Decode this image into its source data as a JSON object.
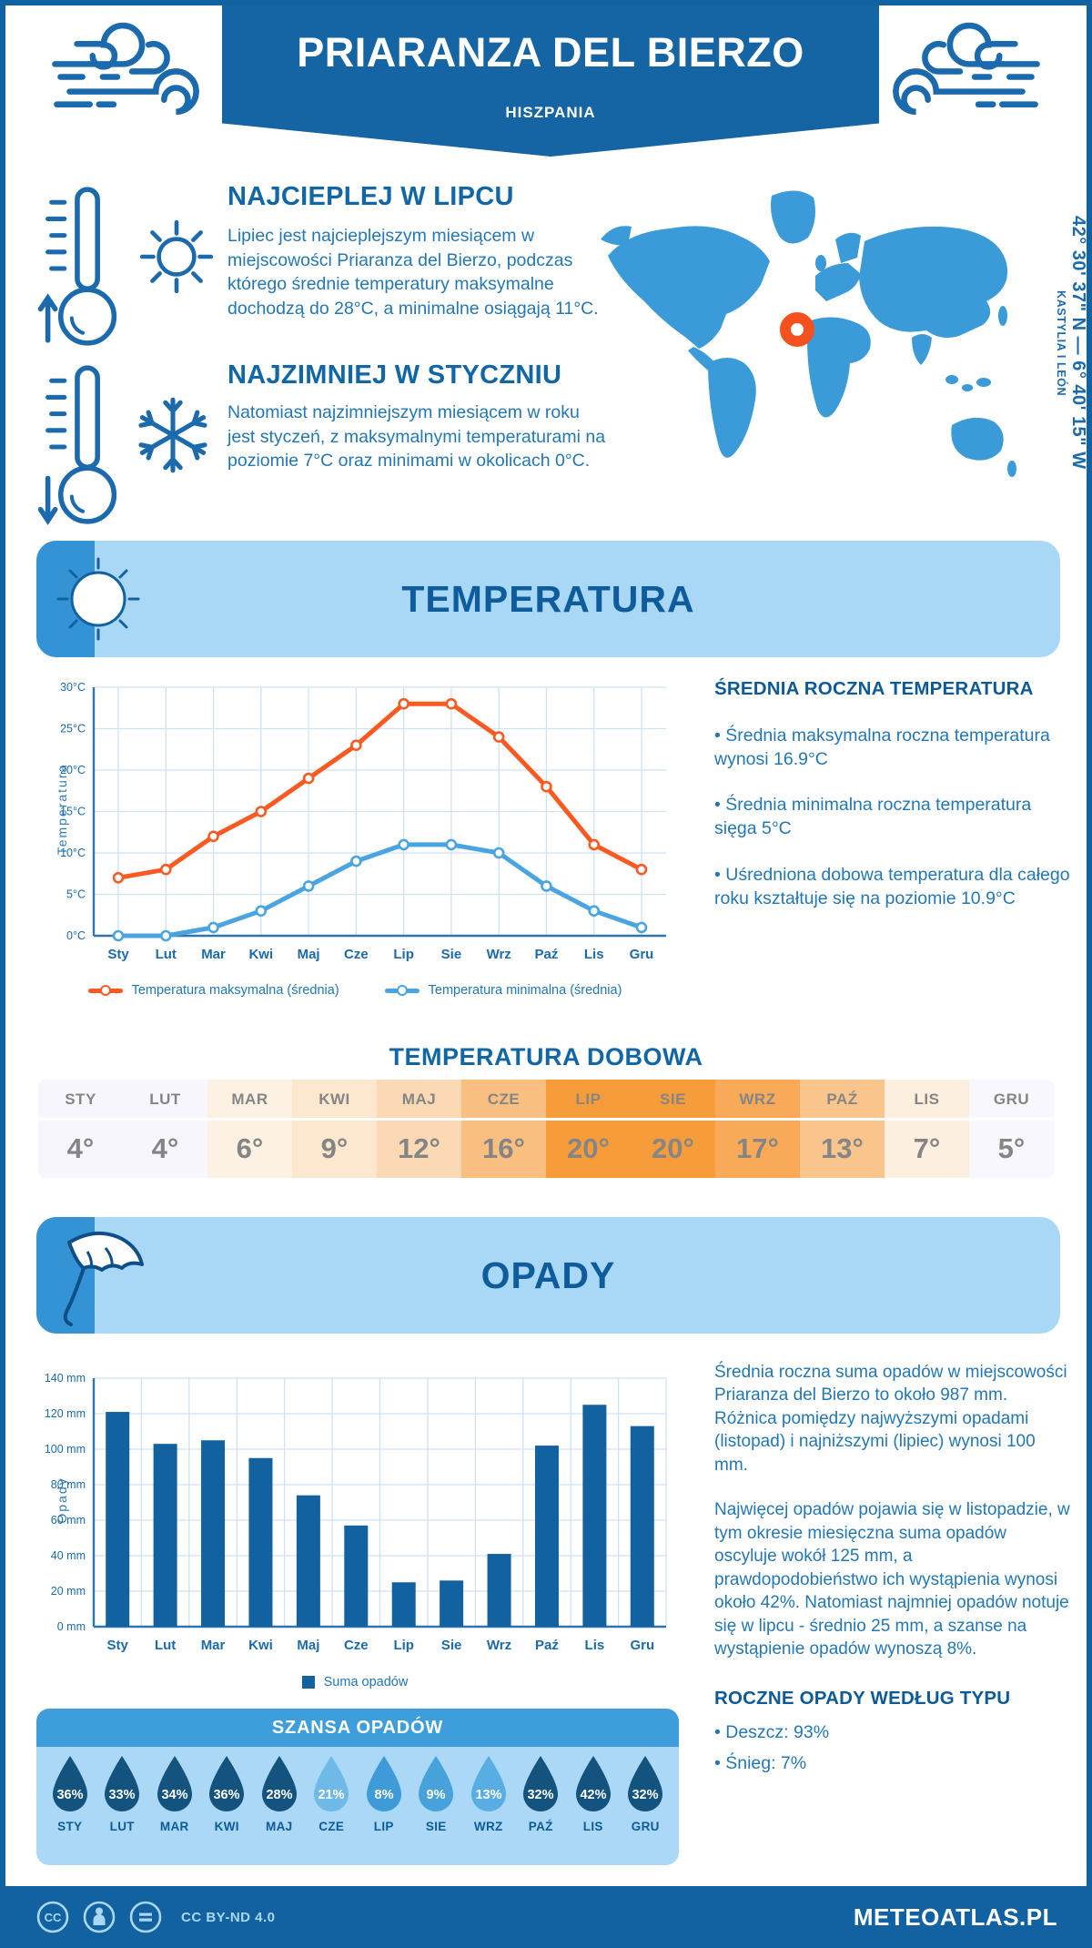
{
  "header": {
    "title": "PRIARANZA DEL BIERZO",
    "subtitle": "HISZPANIA",
    "banner_color": "#1564a4"
  },
  "highlights": [
    {
      "title": "NAJCIEPLEJ W LIPCU",
      "text": "Lipiec jest najcieplejszym miesiącem w miejscowości Priaranza del Bierzo, podczas którego średnie temperatury maksymalne dochodzą do 28°C, a minimalne osiągają 11°C."
    },
    {
      "title": "NAJZIMNIEJ W STYCZNIU",
      "text": "Natomiast najzimniejszym miesiącem w roku jest styczeń, z maksymalnymi temperaturami na poziomie 7°C oraz minimami w okolicach 0°C."
    }
  ],
  "map": {
    "coordinates": "42° 30' 37\" N — 6° 40' 15\" W",
    "region": "KASTYLIA I LEÓN",
    "marker_color": "#f4511e",
    "land_color": "#3b9ad8"
  },
  "sections": {
    "temperature": {
      "title": "TEMPERATURA"
    },
    "precipitation": {
      "title": "OPADY"
    }
  },
  "annual_temperature": {
    "title": "ŚREDNIA ROCZNA TEMPERATURA",
    "bullets": [
      "• Średnia maksymalna roczna temperatura wynosi 16.9°C",
      "• Średnia minimalna roczna temperatura sięga 5°C",
      "• Uśredniona dobowa temperatura dla całego roku kształtuje się na poziomie 10.9°C"
    ]
  },
  "precipitation_summary": {
    "paragraphs": [
      "Średnia roczna suma opadów w miejscowości Priaranza del Bierzo to około 987 mm. Różnica pomiędzy najwyższymi opadami (listopad) i najniższymi (lipiec) wynosi 100 mm.",
      "Najwięcej opadów pojawia się w listopadzie, w tym okresie miesięczna suma opadów oscyluje wokół 125 mm, a prawdopodobieństwo ich wystąpienia wynosi około 42%. Natomiast najmniej opadów notuje się w lipcu - średnio 25 mm, a szanse na wystąpienie opadów wynoszą 8%."
    ],
    "by_type": {
      "title": "ROCZNE OPADY WEDŁUG TYPU",
      "bullets": [
        "• Deszcz: 93%",
        "• Śnieg: 7%"
      ]
    }
  },
  "chart_data": [
    {
      "type": "line",
      "x": [
        "Sty",
        "Lut",
        "Mar",
        "Kwi",
        "Maj",
        "Cze",
        "Lip",
        "Sie",
        "Wrz",
        "Paź",
        "Lis",
        "Gru"
      ],
      "series": [
        {
          "name": "Temperatura maksymalna (średnia)",
          "color": "#fa5a22",
          "values": [
            7,
            8,
            12,
            15,
            19,
            23,
            28,
            28,
            24,
            18,
            11,
            8
          ]
        },
        {
          "name": "Temperatura minimalna (średnia)",
          "color": "#49a4e1",
          "values": [
            0,
            0,
            1,
            3,
            6,
            9,
            11,
            11,
            10,
            6,
            3,
            1
          ]
        }
      ],
      "ylabel": "Temperatura",
      "ylim": [
        0,
        30
      ],
      "ytick_step": 5,
      "ytick_suffix": "°C",
      "grid": true,
      "legend_position": "bottom"
    },
    {
      "type": "bar",
      "categories": [
        "Sty",
        "Lut",
        "Mar",
        "Kwi",
        "Maj",
        "Cze",
        "Lip",
        "Sie",
        "Wrz",
        "Paź",
        "Lis",
        "Gru"
      ],
      "values": [
        121,
        103,
        105,
        95,
        74,
        57,
        25,
        26,
        41,
        102,
        125,
        113
      ],
      "series_name": "Suma opadów",
      "color": "#1261a0",
      "ylabel": "Opady",
      "ylim": [
        0,
        140
      ],
      "ytick_step": 20,
      "ytick_suffix": " mm",
      "grid": true,
      "legend_position": "bottom"
    },
    {
      "type": "table",
      "title": "TEMPERATURA DOBOWA",
      "months": [
        "STY",
        "LUT",
        "MAR",
        "KWI",
        "MAJ",
        "CZE",
        "LIP",
        "SIE",
        "WRZ",
        "PAŹ",
        "LIS",
        "GRU"
      ],
      "values": [
        "4°",
        "4°",
        "6°",
        "9°",
        "12°",
        "16°",
        "20°",
        "20°",
        "17°",
        "13°",
        "7°",
        "5°"
      ],
      "cell_colors": [
        "#f6f6fc",
        "#f6f6fc",
        "#fdf1e3",
        "#fde7cf",
        "#fbd9b4",
        "#f9bf80",
        "#f79c3b",
        "#f79c3b",
        "#f8aa58",
        "#fac58c",
        "#fdefdf",
        "#f7f7fd"
      ],
      "text_color": "#858585"
    },
    {
      "type": "table",
      "title": "SZANSA OPADÓW",
      "months": [
        "STY",
        "LUT",
        "MAR",
        "KWI",
        "MAJ",
        "CZE",
        "LIP",
        "SIE",
        "WRZ",
        "PAŹ",
        "LIS",
        "GRU"
      ],
      "values": [
        "36%",
        "33%",
        "34%",
        "36%",
        "28%",
        "21%",
        "8%",
        "9%",
        "13%",
        "32%",
        "42%",
        "32%"
      ],
      "drop_colors": [
        "#15537f",
        "#15537f",
        "#15537f",
        "#15537f",
        "#15537f",
        "#6fb9e8",
        "#3f9ad8",
        "#47a2dc",
        "#58ade2",
        "#15537f",
        "#15537f",
        "#15537f"
      ]
    }
  ],
  "footer": {
    "license": "CC BY-ND 4.0",
    "site": "METEOATLAS.PL"
  }
}
